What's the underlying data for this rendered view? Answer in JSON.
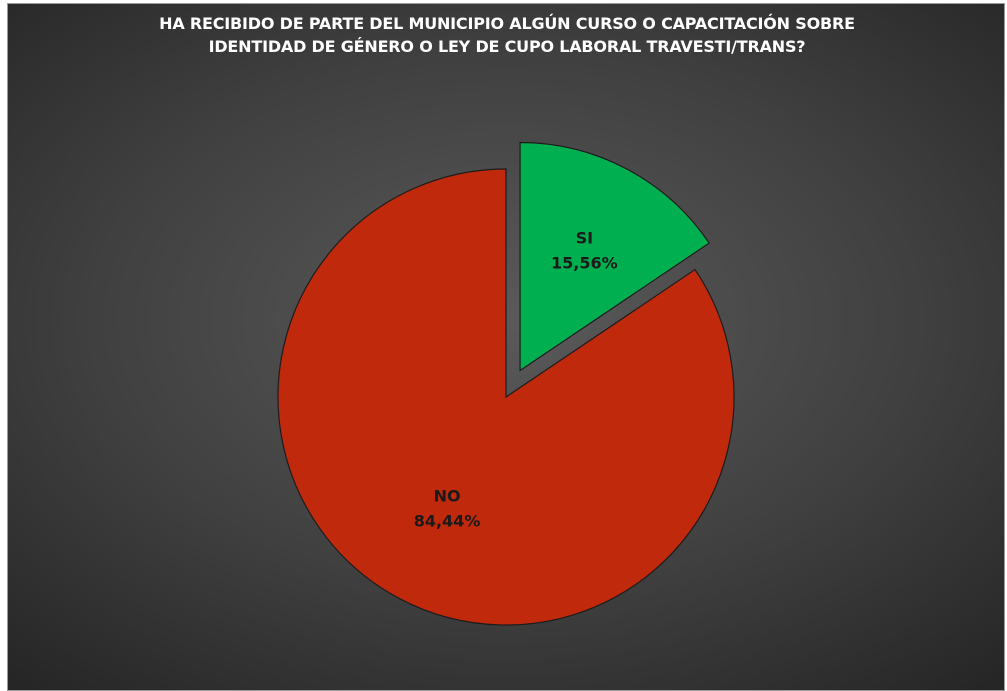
{
  "chart_data": {
    "type": "pie",
    "title_lines": [
      "HA RECIBIDO DE PARTE DEL MUNICIPIO ALGÚN CURSO O CAPACITACIÓN SOBRE",
      "IDENTIDAD DE GÉNERO O LEY DE CUPO LABORAL TRAVESTI/TRANS?"
    ],
    "slices": [
      {
        "label": "SI",
        "value": 15.56,
        "value_label": "15,56%",
        "color": "#00b050",
        "text_color": "#1a1a1a",
        "exploded": true
      },
      {
        "label": "NO",
        "value": 84.44,
        "value_label": "84,44%",
        "color": "#c0290b",
        "text_color": "#1a1a1a",
        "exploded": false
      }
    ],
    "start_angle_deg": 0,
    "direction": "clockwise",
    "legend": "none",
    "data_labels": "inside"
  }
}
